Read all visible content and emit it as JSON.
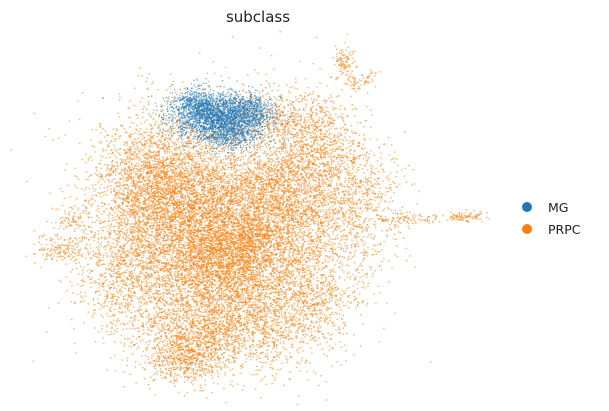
{
  "chart_data": {
    "type": "scatter",
    "title": "subclass",
    "xlabel": "",
    "ylabel": "",
    "grid": false,
    "legend_placement": "right",
    "series": [
      {
        "name": "MG",
        "color": "#1f77b4"
      },
      {
        "name": "PRPC",
        "color": "#ff7f0e"
      }
    ]
  }
}
